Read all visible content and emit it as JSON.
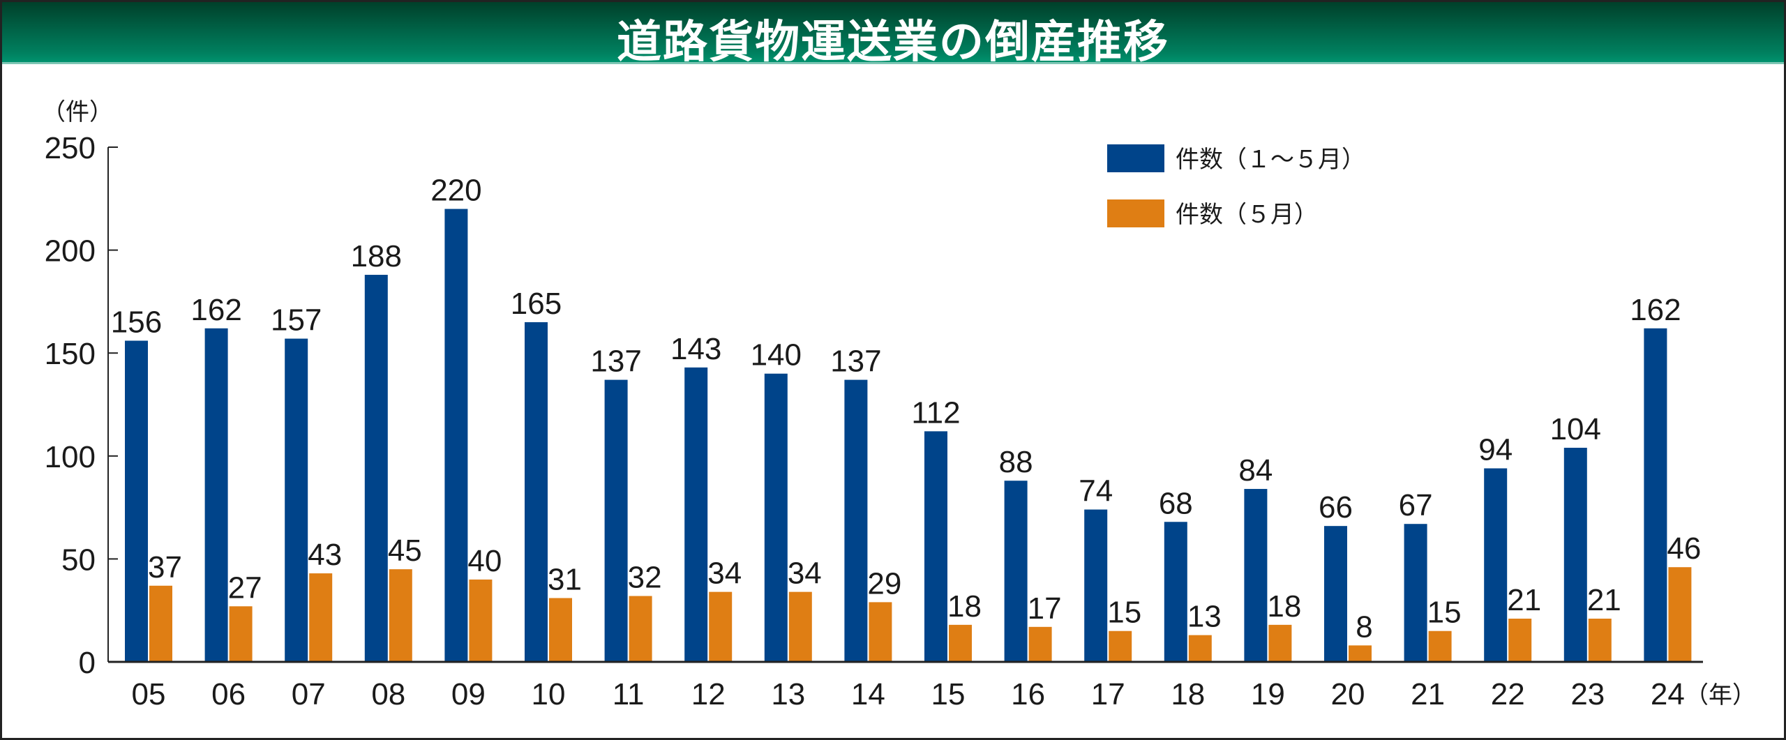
{
  "chart_data": {
    "type": "bar",
    "title": "道路貨物運送業の倒産推移",
    "ylabel": "（件）",
    "xlabel": "（年）",
    "ylim": [
      0,
      250
    ],
    "yticks": [
      0,
      50,
      100,
      150,
      200,
      250
    ],
    "categories": [
      "05",
      "06",
      "07",
      "08",
      "09",
      "10",
      "11",
      "12",
      "13",
      "14",
      "15",
      "16",
      "17",
      "18",
      "19",
      "20",
      "21",
      "22",
      "23",
      "24"
    ],
    "series": [
      {
        "name": "件数（１～５月）",
        "color": "#00448a",
        "values": [
          156,
          162,
          157,
          188,
          220,
          165,
          137,
          143,
          140,
          137,
          112,
          88,
          74,
          68,
          84,
          66,
          67,
          94,
          104,
          162
        ]
      },
      {
        "name": "件数（５月）",
        "color": "#df7e14",
        "values": [
          37,
          27,
          43,
          45,
          40,
          31,
          32,
          34,
          34,
          29,
          18,
          17,
          15,
          13,
          18,
          8,
          15,
          21,
          21,
          46
        ]
      }
    ],
    "legend_position": "top-right",
    "grid": false
  }
}
